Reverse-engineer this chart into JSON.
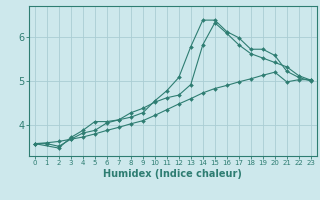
{
  "xlabel": "Humidex (Indice chaleur)",
  "ylabel": "",
  "bg_color": "#cde8ec",
  "line_color": "#2e7d72",
  "grid_color": "#aacdd4",
  "xlim": [
    -0.5,
    23.5
  ],
  "ylim": [
    3.3,
    6.7
  ],
  "yticks": [
    4,
    5,
    6
  ],
  "xticks": [
    0,
    1,
    2,
    3,
    4,
    5,
    6,
    7,
    8,
    9,
    10,
    11,
    12,
    13,
    14,
    15,
    16,
    17,
    18,
    19,
    20,
    21,
    22,
    23
  ],
  "line1_x": [
    0,
    1,
    2,
    3,
    4,
    5,
    6,
    7,
    8,
    9,
    10,
    11,
    12,
    13,
    14,
    15,
    16,
    17,
    18,
    19,
    20,
    21,
    22,
    23
  ],
  "line1_y": [
    3.58,
    3.58,
    3.52,
    3.68,
    3.82,
    3.88,
    4.05,
    4.12,
    4.18,
    4.28,
    4.55,
    4.78,
    5.08,
    5.78,
    6.38,
    6.38,
    6.12,
    5.98,
    5.72,
    5.72,
    5.58,
    5.22,
    5.08,
    5.0
  ],
  "line2_x": [
    0,
    2,
    3,
    4,
    5,
    6,
    7,
    8,
    9,
    10,
    11,
    12,
    13,
    14,
    15,
    16,
    17,
    18,
    19,
    20,
    21,
    22,
    23
  ],
  "line2_y": [
    3.58,
    3.48,
    3.72,
    3.88,
    4.08,
    4.08,
    4.12,
    4.28,
    4.38,
    4.52,
    4.62,
    4.68,
    4.92,
    5.82,
    6.32,
    6.08,
    5.82,
    5.62,
    5.52,
    5.42,
    5.32,
    5.12,
    5.02
  ],
  "line3_x": [
    0,
    1,
    2,
    3,
    4,
    5,
    6,
    7,
    8,
    9,
    10,
    11,
    12,
    13,
    14,
    15,
    16,
    17,
    18,
    19,
    20,
    21,
    22,
    23
  ],
  "line3_y": [
    3.58,
    3.6,
    3.63,
    3.68,
    3.73,
    3.8,
    3.88,
    3.95,
    4.03,
    4.1,
    4.22,
    4.35,
    4.48,
    4.6,
    4.73,
    4.83,
    4.9,
    4.98,
    5.05,
    5.13,
    5.2,
    4.98,
    5.03,
    5.03
  ]
}
